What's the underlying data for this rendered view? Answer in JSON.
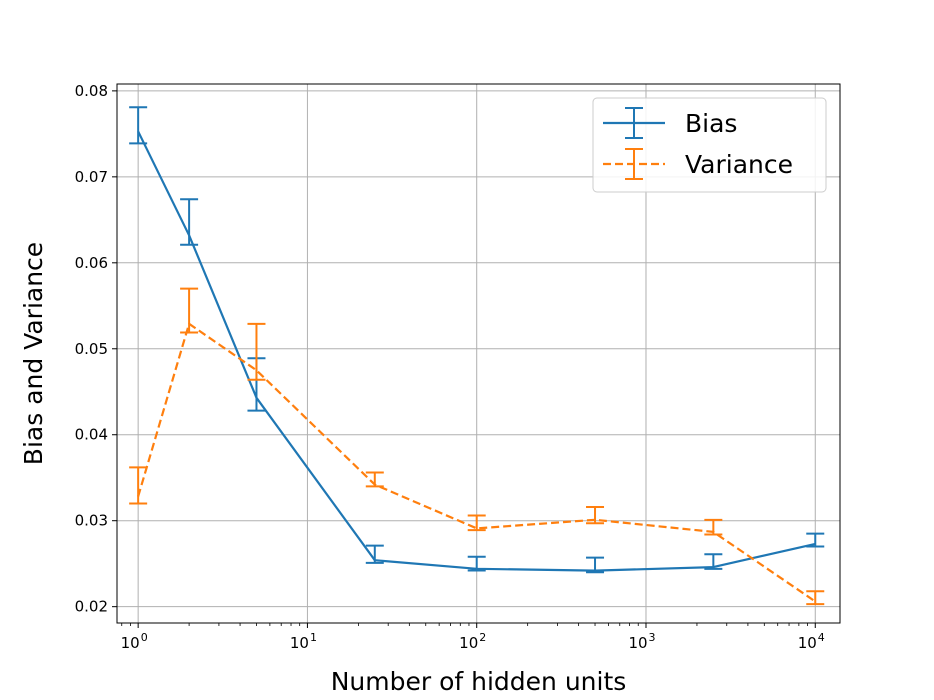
{
  "chart_data": {
    "type": "line",
    "title": "",
    "xlabel": "Number of hidden units",
    "ylabel": "Bias and Variance",
    "xscale": "log",
    "xlim": [
      0.75,
      14000
    ],
    "ylim": [
      0.0181,
      0.0808
    ],
    "grid": true,
    "legend_position": "top-right",
    "x_ticks": [
      {
        "value": 1,
        "base": "10",
        "exp": "0"
      },
      {
        "value": 10,
        "base": "10",
        "exp": "1"
      },
      {
        "value": 100,
        "base": "10",
        "exp": "2"
      },
      {
        "value": 1000,
        "base": "10",
        "exp": "3"
      },
      {
        "value": 10000,
        "base": "10",
        "exp": "4"
      }
    ],
    "y_ticks": [
      {
        "value": 0.02,
        "label": "0.02"
      },
      {
        "value": 0.03,
        "label": "0.03"
      },
      {
        "value": 0.04,
        "label": "0.04"
      },
      {
        "value": 0.05,
        "label": "0.05"
      },
      {
        "value": 0.06,
        "label": "0.06"
      },
      {
        "value": 0.07,
        "label": "0.07"
      },
      {
        "value": 0.08,
        "label": "0.08"
      }
    ],
    "x": [
      1,
      2,
      5,
      25,
      100,
      500,
      2500,
      10000
    ],
    "series": [
      {
        "name": "Bias",
        "color": "#1f77b4",
        "dash": "solid",
        "values": [
          0.0753,
          0.0632,
          0.0443,
          0.0254,
          0.0244,
          0.0242,
          0.0246,
          0.0273
        ],
        "err_low": [
          0.0739,
          0.0621,
          0.0428,
          0.0251,
          0.0242,
          0.024,
          0.0244,
          0.027
        ],
        "err_high": [
          0.0781,
          0.0674,
          0.0489,
          0.0271,
          0.0258,
          0.0257,
          0.0261,
          0.0285
        ]
      },
      {
        "name": "Variance",
        "color": "#ff7f0e",
        "dash": "dashed",
        "values": [
          0.0328,
          0.0529,
          0.0475,
          0.0342,
          0.0291,
          0.0301,
          0.0287,
          0.0206
        ],
        "err_low": [
          0.032,
          0.0519,
          0.0464,
          0.034,
          0.0289,
          0.0297,
          0.0284,
          0.0203
        ],
        "err_high": [
          0.0362,
          0.057,
          0.0529,
          0.0356,
          0.0306,
          0.0316,
          0.0301,
          0.0218
        ]
      }
    ]
  }
}
